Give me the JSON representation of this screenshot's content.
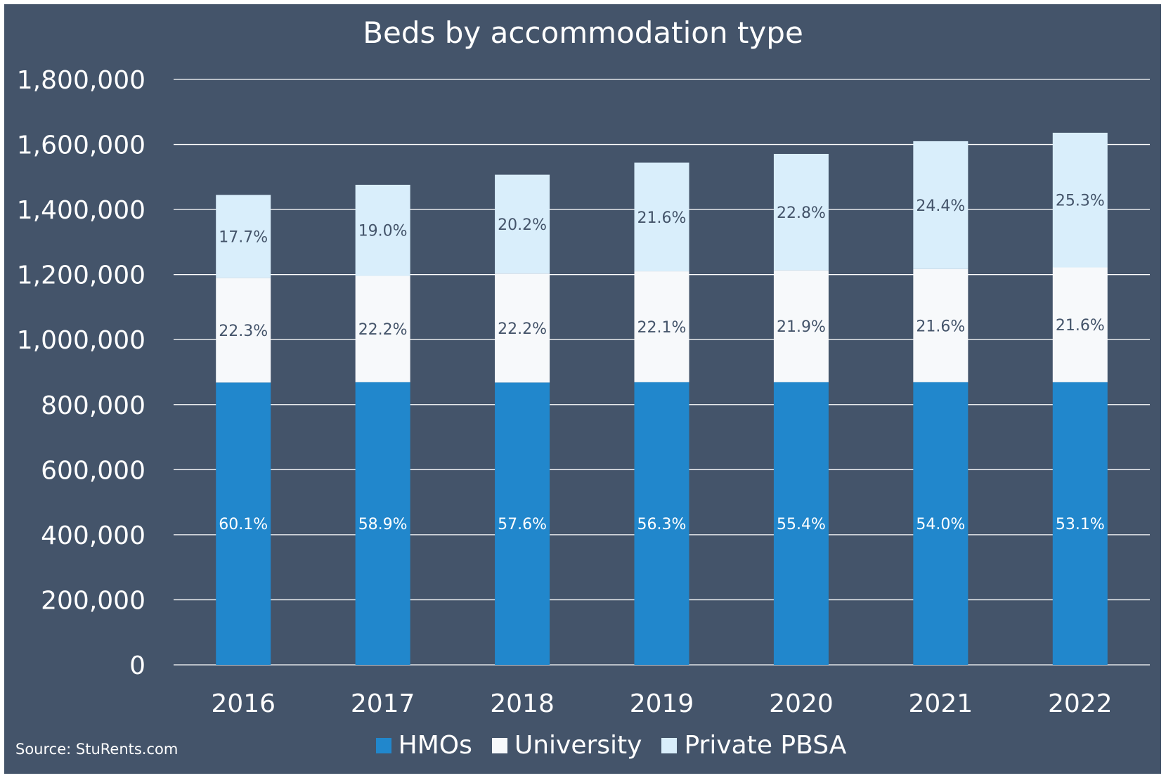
{
  "chart_data": {
    "type": "bar",
    "stacked": true,
    "title": "Beds by accommodation type",
    "source": "Source: StuRents.com",
    "categories": [
      "2016",
      "2017",
      "2018",
      "2019",
      "2020",
      "2021",
      "2022"
    ],
    "ylim": [
      0,
      1800000
    ],
    "yticks": [
      0,
      200000,
      400000,
      600000,
      800000,
      1000000,
      1200000,
      1400000,
      1600000,
      1800000
    ],
    "ytick_labels": [
      "0",
      "200,000",
      "400,000",
      "600,000",
      "800,000",
      "1,000,000",
      "1,200,000",
      "1,400,000",
      "1,600,000",
      "1,800,000"
    ],
    "grid": true,
    "legend_position": "bottom",
    "series": [
      {
        "name": "HMOs",
        "color": "#2187cc",
        "label_color": "#ffffff",
        "values": [
          868000,
          869000,
          868000,
          869000,
          869000,
          869000,
          869000
        ],
        "labels": [
          "60.1%",
          "58.9%",
          "57.6%",
          "56.3%",
          "55.4%",
          "54.0%",
          "53.1%"
        ]
      },
      {
        "name": "University",
        "color": "#f7f9fb",
        "label_color": "#44546a",
        "values": [
          322000,
          327000,
          335000,
          341000,
          344000,
          348000,
          353000
        ],
        "labels": [
          "22.3%",
          "22.2%",
          "22.2%",
          "22.1%",
          "21.9%",
          "21.6%",
          "21.6%"
        ]
      },
      {
        "name": "Private PBSA",
        "color": "#d9eefb",
        "label_color": "#44546a",
        "values": [
          255000,
          280000,
          304000,
          334000,
          358000,
          393000,
          414000
        ],
        "labels": [
          "17.7%",
          "19.0%",
          "20.2%",
          "21.6%",
          "22.8%",
          "24.4%",
          "25.3%"
        ]
      }
    ],
    "background_color": "#44546a"
  }
}
